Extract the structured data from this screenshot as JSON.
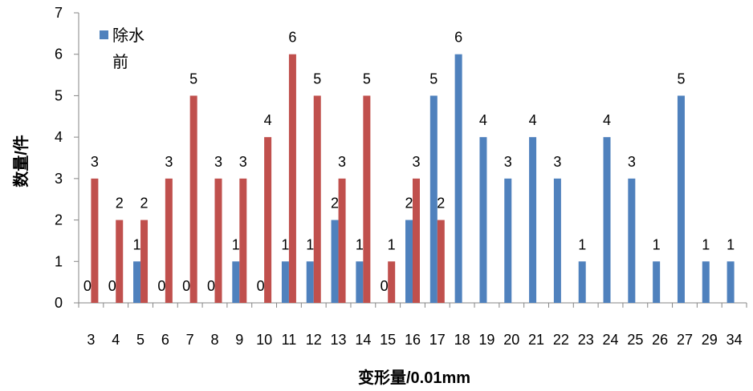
{
  "chart_data": {
    "type": "bar",
    "title": "",
    "xlabel": "变形量/0.01mm",
    "ylabel": "数量/件",
    "ylim": [
      0,
      7
    ],
    "yticks": [
      0,
      1,
      2,
      3,
      4,
      5,
      6,
      7
    ],
    "grid": false,
    "legend_placement": "top-left",
    "categories": [
      "3",
      "4",
      "5",
      "6",
      "7",
      "8",
      "9",
      "10",
      "11",
      "12",
      "13",
      "14",
      "15",
      "16",
      "17",
      "18",
      "19",
      "20",
      "21",
      "22",
      "23",
      "24",
      "25",
      "26",
      "27",
      "29",
      "34"
    ],
    "series": [
      {
        "name": "除水前",
        "color": "#4F81BD",
        "values": [
          0,
          0,
          1,
          0,
          0,
          0,
          1,
          0,
          1,
          1,
          2,
          1,
          0,
          2,
          5,
          6,
          4,
          3,
          4,
          3,
          1,
          4,
          3,
          1,
          5,
          1,
          1
        ]
      },
      {
        "name": "",
        "color": "#C0504D",
        "values": [
          3,
          2,
          2,
          3,
          5,
          3,
          3,
          4,
          6,
          5,
          3,
          5,
          1,
          3,
          2,
          null,
          null,
          null,
          null,
          null,
          null,
          null,
          null,
          null,
          null,
          null,
          null
        ]
      }
    ]
  }
}
